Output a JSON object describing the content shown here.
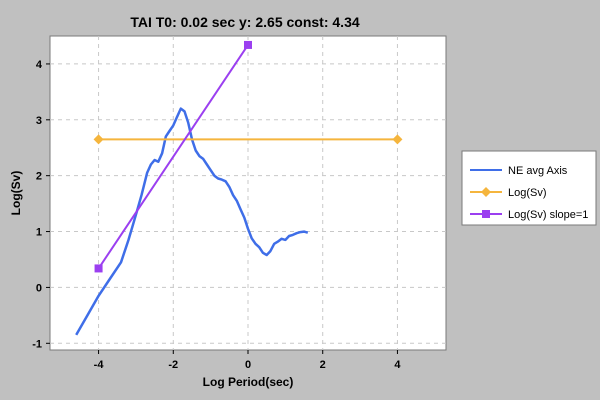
{
  "chart_data": {
    "type": "line",
    "title": "TAI T0: 0.02 sec  y: 2.65 const: 4.34",
    "xlabel": "Log Period(sec)",
    "ylabel": "Log(Sv)",
    "xlim": [
      -5.3,
      5.3
    ],
    "ylim": [
      -1.12,
      4.5
    ],
    "xticks": [
      -4,
      -2,
      0,
      2,
      4
    ],
    "yticks": [
      -1,
      0,
      1,
      2,
      3,
      4
    ],
    "grid": true,
    "legend_position": "right",
    "series": [
      {
        "name": "NE avg Axis",
        "color": "#3f6ee8",
        "marker": "none",
        "x": [
          -4.6,
          -4.3,
          -4.0,
          -3.7,
          -3.4,
          -3.2,
          -3.0,
          -2.85,
          -2.7,
          -2.6,
          -2.5,
          -2.4,
          -2.3,
          -2.2,
          -2.1,
          -2.0,
          -1.9,
          -1.8,
          -1.7,
          -1.6,
          -1.5,
          -1.4,
          -1.3,
          -1.2,
          -1.1,
          -1.0,
          -0.9,
          -0.8,
          -0.7,
          -0.6,
          -0.5,
          -0.4,
          -0.3,
          -0.2,
          -0.1,
          0.0,
          0.1,
          0.2,
          0.3,
          0.4,
          0.5,
          0.6,
          0.7,
          0.8,
          0.9,
          1.0,
          1.1,
          1.2,
          1.3,
          1.4,
          1.5,
          1.6
        ],
        "y": [
          -0.85,
          -0.5,
          -0.15,
          0.15,
          0.45,
          0.85,
          1.3,
          1.65,
          2.05,
          2.2,
          2.28,
          2.25,
          2.4,
          2.7,
          2.8,
          2.9,
          3.05,
          3.2,
          3.15,
          2.95,
          2.65,
          2.45,
          2.35,
          2.3,
          2.2,
          2.1,
          2.0,
          1.95,
          1.93,
          1.9,
          1.8,
          1.65,
          1.55,
          1.4,
          1.25,
          1.05,
          0.88,
          0.78,
          0.72,
          0.62,
          0.58,
          0.65,
          0.78,
          0.82,
          0.87,
          0.85,
          0.92,
          0.94,
          0.97,
          0.99,
          1.0,
          0.98
        ]
      },
      {
        "name": "Log(Sv)",
        "color": "#f5b53d",
        "marker": "diamond",
        "x": [
          -4,
          4
        ],
        "y": [
          2.65,
          2.65
        ]
      },
      {
        "name": "Log(Sv) slope=1",
        "color": "#9b3ff0",
        "marker": "square",
        "x": [
          -4,
          0
        ],
        "y": [
          0.34,
          4.34
        ]
      }
    ]
  }
}
